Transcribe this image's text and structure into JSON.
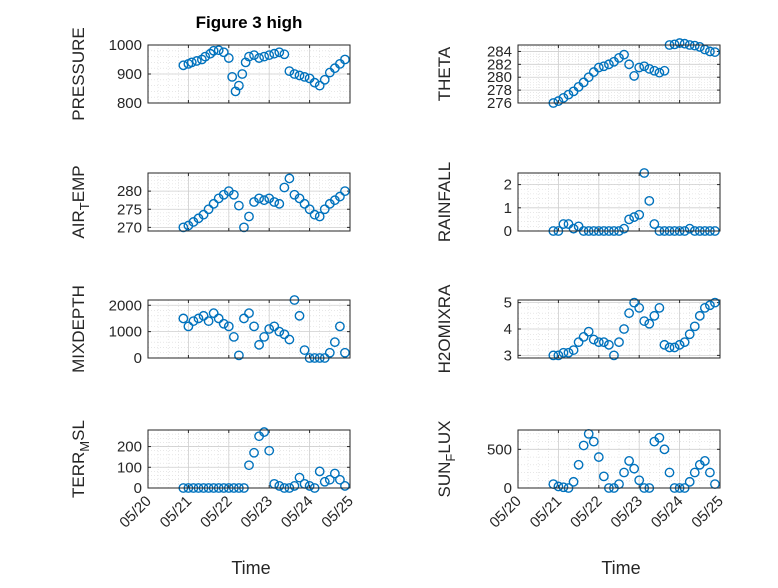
{
  "figure": {
    "title": "Figure 3 high",
    "xlabel": "Time",
    "x_ticks": [
      "05/20",
      "05/21",
      "05/22",
      "05/23",
      "05/24",
      "05/25"
    ],
    "marker_color": "#0072BD",
    "grid": "on (major + minor)"
  },
  "chart_data": [
    {
      "type": "scatter",
      "ylabel": "PRESSURE",
      "ylim": [
        800,
        1000
      ],
      "yticks": [
        800,
        900,
        1000
      ],
      "x": [
        "05/20/21:00",
        "05/21/00:00",
        "05/21/02:00",
        "05/21/05:00",
        "05/21/08:00",
        "05/21/10:00",
        "05/21/13:00",
        "05/21/15:00",
        "05/21/18:00",
        "05/21/21:00",
        "05/22/00:00",
        "05/22/02:00",
        "05/22/04:00",
        "05/22/06:00",
        "05/22/08:00",
        "05/22/10:00",
        "05/22/12:00",
        "05/22/15:00",
        "05/22/18:00",
        "05/22/21:00",
        "05/23/00:00",
        "05/23/03:00",
        "05/23/06:00",
        "05/23/09:00",
        "05/23/12:00",
        "05/23/15:00",
        "05/23/18:00",
        "05/23/21:00",
        "05/24/00:00",
        "05/24/03:00",
        "05/24/06:00",
        "05/24/09:00",
        "05/24/12:00",
        "05/24/15:00",
        "05/24/18:00",
        "05/24/21:00"
      ],
      "values": [
        930,
        935,
        940,
        945,
        950,
        960,
        970,
        980,
        982,
        975,
        955,
        890,
        840,
        860,
        900,
        940,
        960,
        965,
        955,
        960,
        965,
        970,
        975,
        968,
        910,
        900,
        895,
        890,
        885,
        870,
        860,
        880,
        905,
        920,
        935,
        950
      ]
    },
    {
      "type": "scatter",
      "ylabel": "THETA",
      "ylim": [
        276,
        285
      ],
      "yticks": [
        276,
        278,
        280,
        282,
        284
      ],
      "x": [
        "05/20/21:00",
        "05/21/00:00",
        "05/21/03:00",
        "05/21/06:00",
        "05/21/09:00",
        "05/21/12:00",
        "05/21/15:00",
        "05/21/18:00",
        "05/21/21:00",
        "05/22/00:00",
        "05/22/03:00",
        "05/22/06:00",
        "05/22/09:00",
        "05/22/12:00",
        "05/22/15:00",
        "05/22/18:00",
        "05/22/21:00",
        "05/23/00:00",
        "05/23/03:00",
        "05/23/06:00",
        "05/23/09:00",
        "05/23/12:00",
        "05/23/15:00",
        "05/23/18:00",
        "05/23/21:00",
        "05/24/00:00",
        "05/24/03:00",
        "05/24/06:00",
        "05/24/09:00",
        "05/24/12:00",
        "05/24/15:00",
        "05/24/18:00",
        "05/24/21:00"
      ],
      "values": [
        276,
        276.3,
        276.8,
        277.3,
        277.8,
        278.5,
        279.2,
        280,
        280.8,
        281.5,
        281.7,
        282,
        282.4,
        283,
        283.5,
        282,
        280.2,
        281.5,
        281.7,
        281.3,
        281,
        280.7,
        281,
        285,
        285.1,
        285.3,
        285.2,
        285,
        284.9,
        284.7,
        284.3,
        284,
        283.9
      ]
    },
    {
      "type": "scatter",
      "ylabel": "AIR_TEMP",
      "ylim": [
        269,
        285
      ],
      "yticks": [
        270,
        275,
        280
      ],
      "x": [
        "05/20/21:00",
        "05/21/00:00",
        "05/21/03:00",
        "05/21/06:00",
        "05/21/09:00",
        "05/21/12:00",
        "05/21/15:00",
        "05/21/18:00",
        "05/21/21:00",
        "05/22/00:00",
        "05/22/03:00",
        "05/22/06:00",
        "05/22/09:00",
        "05/22/12:00",
        "05/22/15:00",
        "05/22/18:00",
        "05/22/21:00",
        "05/23/00:00",
        "05/23/03:00",
        "05/23/06:00",
        "05/23/09:00",
        "05/23/12:00",
        "05/23/15:00",
        "05/23/18:00",
        "05/23/21:00",
        "05/24/00:00",
        "05/24/03:00",
        "05/24/06:00",
        "05/24/09:00",
        "05/24/12:00",
        "05/24/15:00",
        "05/24/18:00",
        "05/24/21:00"
      ],
      "values": [
        270,
        270.5,
        271.5,
        272.5,
        273.5,
        275,
        276.5,
        278,
        279,
        280,
        279,
        276,
        270,
        273,
        277,
        278,
        277.5,
        278,
        277,
        276.5,
        281,
        283.5,
        279,
        278,
        276.5,
        275,
        273.5,
        273,
        275,
        276.5,
        277.5,
        278.5,
        280
      ]
    },
    {
      "type": "scatter",
      "ylabel": "RAINFALL",
      "ylim": [
        0,
        2.5
      ],
      "yticks": [
        0,
        1,
        2
      ],
      "x": [
        "05/20/21:00",
        "05/21/00:00",
        "05/21/03:00",
        "05/21/06:00",
        "05/21/09:00",
        "05/21/12:00",
        "05/21/15:00",
        "05/21/18:00",
        "05/21/21:00",
        "05/22/00:00",
        "05/22/03:00",
        "05/22/06:00",
        "05/22/09:00",
        "05/22/12:00",
        "05/22/15:00",
        "05/22/18:00",
        "05/22/21:00",
        "05/23/00:00",
        "05/23/03:00",
        "05/23/06:00",
        "05/23/09:00",
        "05/23/12:00",
        "05/23/15:00",
        "05/23/18:00",
        "05/23/21:00",
        "05/24/00:00",
        "05/24/03:00",
        "05/24/06:00",
        "05/24/09:00",
        "05/24/12:00",
        "05/24/15:00",
        "05/24/18:00",
        "05/24/21:00"
      ],
      "values": [
        0,
        0,
        0.3,
        0.3,
        0.1,
        0.2,
        0,
        0,
        0,
        0,
        0,
        0,
        0,
        0,
        0.1,
        0.5,
        0.6,
        0.7,
        2.5,
        1.3,
        0.3,
        0,
        0,
        0,
        0,
        0,
        0,
        0.1,
        0,
        0,
        0,
        0,
        0
      ]
    },
    {
      "type": "scatter",
      "ylabel": "MIXDEPTH",
      "ylim": [
        0,
        2200
      ],
      "yticks": [
        0,
        1000,
        2000
      ],
      "x": [
        "05/20/21:00",
        "05/21/00:00",
        "05/21/03:00",
        "05/21/06:00",
        "05/21/09:00",
        "05/21/12:00",
        "05/21/15:00",
        "05/21/18:00",
        "05/21/21:00",
        "05/22/00:00",
        "05/22/03:00",
        "05/22/06:00",
        "05/22/09:00",
        "05/22/12:00",
        "05/22/15:00",
        "05/22/18:00",
        "05/22/21:00",
        "05/23/00:00",
        "05/23/03:00",
        "05/23/06:00",
        "05/23/09:00",
        "05/23/12:00",
        "05/23/15:00",
        "05/23/18:00",
        "05/23/21:00",
        "05/24/00:00",
        "05/24/03:00",
        "05/24/06:00",
        "05/24/09:00",
        "05/24/12:00",
        "05/24/15:00",
        "05/24/18:00",
        "05/24/21:00"
      ],
      "values": [
        1500,
        1200,
        1400,
        1500,
        1600,
        1400,
        1700,
        1500,
        1300,
        1200,
        800,
        100,
        1500,
        1700,
        1200,
        500,
        800,
        1100,
        1200,
        1000,
        900,
        700,
        2200,
        1600,
        300,
        0,
        0,
        0,
        0,
        200,
        600,
        1200,
        200
      ]
    },
    {
      "type": "scatter",
      "ylabel": "H2OMIXRA",
      "ylim": [
        2.9,
        5.1
      ],
      "yticks": [
        3,
        4,
        5
      ],
      "x": [
        "05/20/21:00",
        "05/21/00:00",
        "05/21/03:00",
        "05/21/06:00",
        "05/21/09:00",
        "05/21/12:00",
        "05/21/15:00",
        "05/21/18:00",
        "05/21/21:00",
        "05/22/00:00",
        "05/22/03:00",
        "05/22/06:00",
        "05/22/09:00",
        "05/22/12:00",
        "05/22/15:00",
        "05/22/18:00",
        "05/22/21:00",
        "05/23/00:00",
        "05/23/03:00",
        "05/23/06:00",
        "05/23/09:00",
        "05/23/12:00",
        "05/23/15:00",
        "05/23/18:00",
        "05/23/21:00",
        "05/24/00:00",
        "05/24/03:00",
        "05/24/06:00",
        "05/24/09:00",
        "05/24/12:00",
        "05/24/15:00",
        "05/24/18:00",
        "05/24/21:00"
      ],
      "values": [
        3,
        3,
        3.1,
        3.1,
        3.2,
        3.5,
        3.7,
        3.9,
        3.6,
        3.5,
        3.5,
        3.4,
        3.0,
        3.5,
        4.0,
        4.6,
        5.0,
        4.8,
        4.3,
        4.2,
        4.5,
        4.8,
        3.4,
        3.3,
        3.3,
        3.4,
        3.5,
        3.8,
        4.1,
        4.5,
        4.8,
        4.9,
        5.0
      ]
    },
    {
      "type": "scatter",
      "ylabel": "TERR_MSL",
      "ylim": [
        0,
        280
      ],
      "yticks": [
        0,
        100,
        200
      ],
      "x": [
        "05/20/21:00",
        "05/21/00:00",
        "05/21/03:00",
        "05/21/06:00",
        "05/21/09:00",
        "05/21/12:00",
        "05/21/15:00",
        "05/21/18:00",
        "05/21/21:00",
        "05/22/00:00",
        "05/22/03:00",
        "05/22/06:00",
        "05/22/09:00",
        "05/22/12:00",
        "05/22/15:00",
        "05/22/18:00",
        "05/22/21:00",
        "05/23/00:00",
        "05/23/03:00",
        "05/23/06:00",
        "05/23/09:00",
        "05/23/12:00",
        "05/23/15:00",
        "05/23/18:00",
        "05/23/21:00",
        "05/24/00:00",
        "05/24/03:00",
        "05/24/06:00",
        "05/24/09:00",
        "05/24/12:00",
        "05/24/15:00",
        "05/24/18:00",
        "05/24/21:00"
      ],
      "values": [
        0,
        0,
        0,
        0,
        0,
        0,
        0,
        0,
        0,
        0,
        0,
        0,
        0,
        110,
        170,
        250,
        270,
        180,
        20,
        10,
        0,
        0,
        10,
        50,
        20,
        10,
        0,
        80,
        30,
        40,
        70,
        40,
        10
      ]
    },
    {
      "type": "scatter",
      "ylabel": "SUN_FLUX",
      "ylim": [
        0,
        750
      ],
      "yticks": [
        0,
        500
      ],
      "x": [
        "05/20/21:00",
        "05/21/00:00",
        "05/21/03:00",
        "05/21/06:00",
        "05/21/09:00",
        "05/21/12:00",
        "05/21/15:00",
        "05/21/18:00",
        "05/21/21:00",
        "05/22/00:00",
        "05/22/03:00",
        "05/22/06:00",
        "05/22/09:00",
        "05/22/12:00",
        "05/22/15:00",
        "05/22/18:00",
        "05/22/21:00",
        "05/23/00:00",
        "05/23/03:00",
        "05/23/06:00",
        "05/23/09:00",
        "05/23/12:00",
        "05/23/15:00",
        "05/23/18:00",
        "05/23/21:00",
        "05/24/00:00",
        "05/24/03:00",
        "05/24/06:00",
        "05/24/09:00",
        "05/24/12:00",
        "05/24/15:00",
        "05/24/18:00",
        "05/24/21:00"
      ],
      "values": [
        50,
        20,
        10,
        0,
        80,
        300,
        550,
        700,
        600,
        400,
        150,
        0,
        0,
        50,
        200,
        350,
        250,
        100,
        0,
        0,
        600,
        650,
        500,
        200,
        0,
        0,
        0,
        80,
        200,
        300,
        350,
        200,
        50
      ]
    }
  ]
}
